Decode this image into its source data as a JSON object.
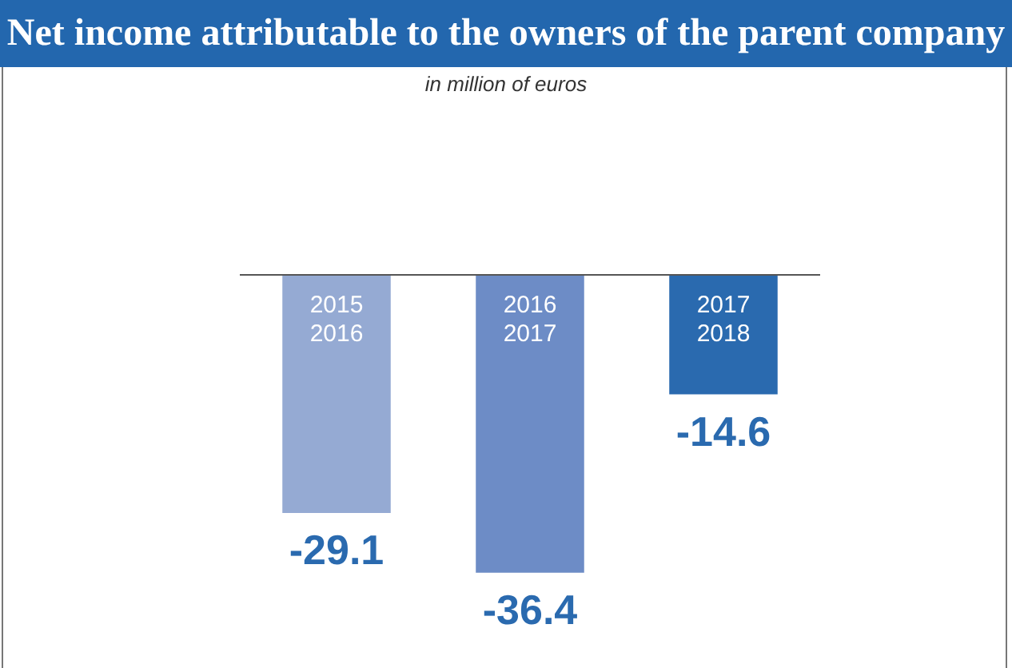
{
  "chart_data": {
    "type": "bar",
    "title": "Net income attributable to the owners of the parent company",
    "subtitle": "in million of euros",
    "categories": [
      "2015\n2016",
      "2016\n2017",
      "2017\n2018"
    ],
    "values": [
      -29.1,
      -36.4,
      -14.6
    ],
    "colors": [
      "#95aad3",
      "#6d8cc6",
      "#2a6aaf"
    ],
    "data_labels": true
  }
}
